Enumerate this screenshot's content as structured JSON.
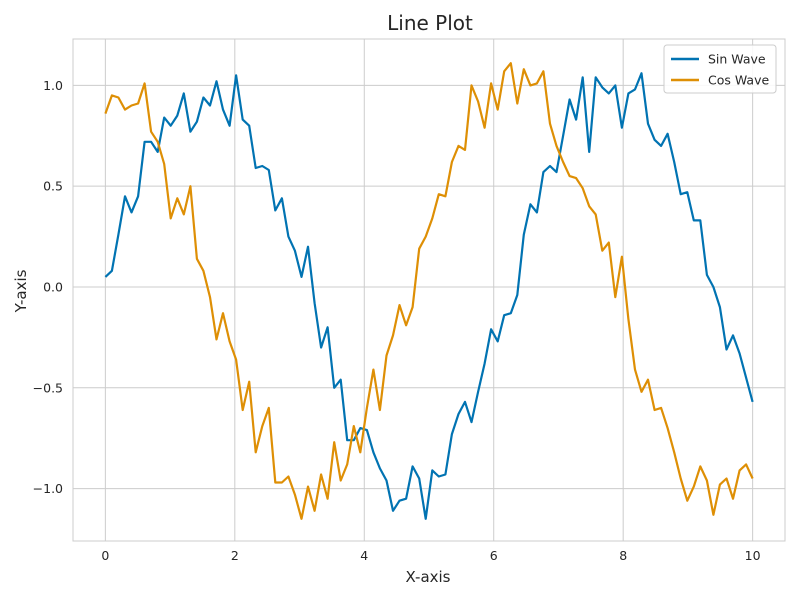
{
  "chart_data": {
    "type": "line",
    "title": "Line Plot",
    "xlabel": "X-axis",
    "ylabel": "Y-axis",
    "xlim": [
      -0.5,
      10.5
    ],
    "ylim": [
      -1.26,
      1.23
    ],
    "xticks": [
      0,
      2,
      4,
      6,
      8,
      10
    ],
    "xtick_labels": [
      "0",
      "2",
      "4",
      "6",
      "8",
      "10"
    ],
    "yticks": [
      1.0,
      0.5,
      0.0,
      -0.5,
      -1.0
    ],
    "ytick_labels": [
      "1.0",
      "0.5",
      "0.0",
      "−0.5",
      "−1.0"
    ],
    "grid": true,
    "legend_position": "top-right",
    "x": [
      0.0,
      0.101,
      0.202,
      0.303,
      0.404,
      0.505,
      0.606,
      0.707,
      0.808,
      0.909,
      1.01,
      1.111,
      1.212,
      1.313,
      1.414,
      1.515,
      1.616,
      1.717,
      1.818,
      1.919,
      2.02,
      2.121,
      2.222,
      2.323,
      2.424,
      2.525,
      2.626,
      2.727,
      2.828,
      2.929,
      3.03,
      3.131,
      3.232,
      3.333,
      3.434,
      3.535,
      3.636,
      3.737,
      3.838,
      3.939,
      4.04,
      4.141,
      4.242,
      4.343,
      4.444,
      4.545,
      4.646,
      4.747,
      4.848,
      4.949,
      5.051,
      5.152,
      5.253,
      5.354,
      5.455,
      5.556,
      5.657,
      5.758,
      5.859,
      5.96,
      6.061,
      6.162,
      6.263,
      6.364,
      6.465,
      6.566,
      6.667,
      6.768,
      6.869,
      6.97,
      7.071,
      7.172,
      7.273,
      7.374,
      7.475,
      7.576,
      7.677,
      7.778,
      7.879,
      7.98,
      8.081,
      8.182,
      8.283,
      8.384,
      8.485,
      8.586,
      8.687,
      8.788,
      8.889,
      8.99,
      9.091,
      9.192,
      9.293,
      9.394,
      9.495,
      9.596,
      9.697,
      9.798,
      9.899,
      10.0
    ],
    "series": [
      {
        "name": "Sin Wave",
        "color": "#0173b2",
        "values": [
          0.05,
          0.08,
          0.26,
          0.45,
          0.37,
          0.45,
          0.72,
          0.72,
          0.67,
          0.84,
          0.8,
          0.85,
          0.96,
          0.77,
          0.82,
          0.94,
          0.9,
          1.02,
          0.88,
          0.8,
          1.05,
          0.83,
          0.8,
          0.59,
          0.6,
          0.58,
          0.38,
          0.44,
          0.25,
          0.18,
          0.05,
          0.2,
          -0.08,
          -0.3,
          -0.2,
          -0.5,
          -0.46,
          -0.76,
          -0.76,
          -0.7,
          -0.71,
          -0.82,
          -0.9,
          -0.96,
          -1.11,
          -1.06,
          -1.05,
          -0.89,
          -0.95,
          -1.15,
          -0.91,
          -0.94,
          -0.93,
          -0.73,
          -0.63,
          -0.57,
          -0.67,
          -0.52,
          -0.38,
          -0.21,
          -0.27,
          -0.14,
          -0.13,
          -0.04,
          0.26,
          0.41,
          0.37,
          0.57,
          0.6,
          0.57,
          0.75,
          0.93,
          0.83,
          1.04,
          0.67,
          1.04,
          0.99,
          0.96,
          1.0,
          0.79,
          0.96,
          0.98,
          1.06,
          0.81,
          0.73,
          0.7,
          0.76,
          0.62,
          0.46,
          0.47,
          0.33,
          0.33,
          0.06,
          0.0,
          -0.1,
          -0.31,
          -0.24,
          -0.33,
          -0.45,
          -0.57
        ]
      },
      {
        "name": "Cos Wave",
        "color": "#de8f05",
        "values": [
          0.86,
          0.95,
          0.94,
          0.88,
          0.9,
          0.91,
          1.01,
          0.77,
          0.72,
          0.61,
          0.34,
          0.44,
          0.36,
          0.5,
          0.14,
          0.08,
          -0.05,
          -0.26,
          -0.13,
          -0.27,
          -0.36,
          -0.61,
          -0.47,
          -0.82,
          -0.69,
          -0.6,
          -0.97,
          -0.97,
          -0.94,
          -1.03,
          -1.15,
          -0.99,
          -1.11,
          -0.93,
          -1.05,
          -0.77,
          -0.96,
          -0.88,
          -0.69,
          -0.82,
          -0.6,
          -0.41,
          -0.61,
          -0.34,
          -0.24,
          -0.09,
          -0.19,
          -0.1,
          0.19,
          0.25,
          0.34,
          0.46,
          0.45,
          0.62,
          0.7,
          0.68,
          1.0,
          0.92,
          0.79,
          1.01,
          0.88,
          1.07,
          1.11,
          0.91,
          1.08,
          1.0,
          1.01,
          1.07,
          0.81,
          0.7,
          0.62,
          0.55,
          0.54,
          0.49,
          0.4,
          0.36,
          0.18,
          0.22,
          -0.05,
          0.15,
          -0.16,
          -0.41,
          -0.52,
          -0.46,
          -0.61,
          -0.6,
          -0.7,
          -0.82,
          -0.95,
          -1.06,
          -0.99,
          -0.89,
          -0.96,
          -1.13,
          -0.98,
          -0.95,
          -1.05,
          -0.91,
          -0.88,
          -0.95
        ]
      }
    ]
  }
}
